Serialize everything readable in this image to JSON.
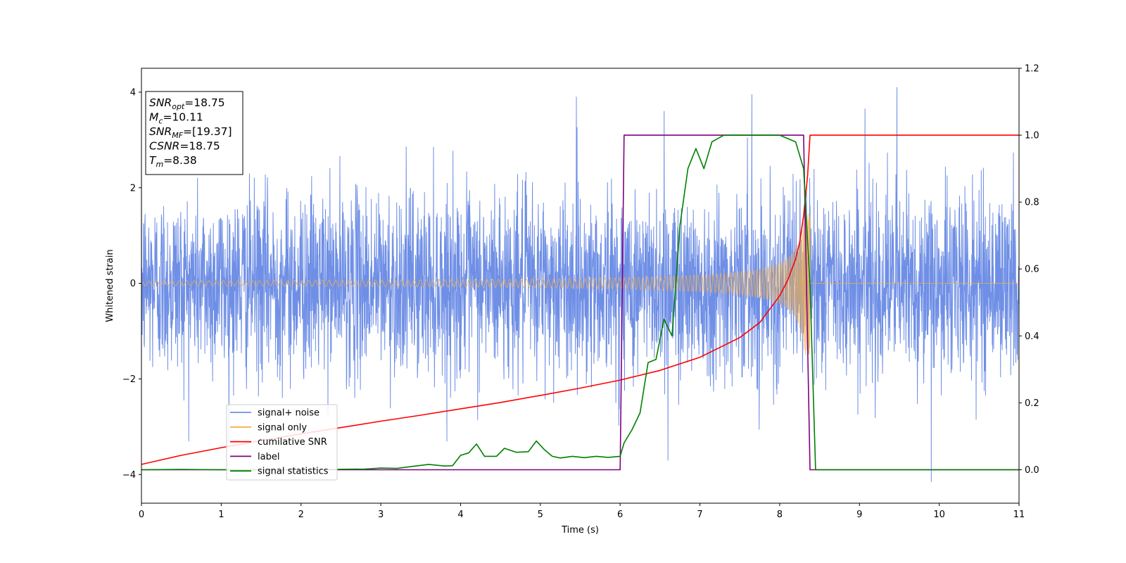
{
  "chart_data": {
    "type": "line",
    "title": "",
    "xlabel": "Time (s)",
    "ylabel": "Whitened strain",
    "xlim": [
      0,
      11
    ],
    "ylim_left": [
      -4.6,
      4.5
    ],
    "ylim_right": [
      -0.1,
      1.2
    ],
    "x_ticks": [
      "0",
      "1",
      "2",
      "3",
      "4",
      "5",
      "6",
      "7",
      "8",
      "9",
      "10",
      "11"
    ],
    "y_ticks_left": [
      "4",
      "2",
      "0",
      "−2",
      "−4"
    ],
    "y_ticks_right": [
      "1.2",
      "1.0",
      "0.8",
      "0.6",
      "0.4",
      "0.2",
      "0.0"
    ],
    "grid": false,
    "legend_position": "lower-left",
    "info_box": [
      {
        "main": "SNR",
        "sub": "opt",
        "rest": "=18.75"
      },
      {
        "main": "M",
        "sub": "c",
        "rest": "=10.11"
      },
      {
        "main": "SNR",
        "sub": "MF",
        "rest": "=[19.37]"
      },
      {
        "main": "CSNR",
        "sub": "",
        "rest": "=18.75"
      },
      {
        "main": "T",
        "sub": "m",
        "rest": "=8.38"
      }
    ],
    "series": [
      {
        "name": "signal+ noise",
        "axis": "left",
        "color": "#6f8fe6",
        "kind": "noise",
        "sigma": 0.95,
        "envelope_max": 3.3,
        "notable_peaks": [
          {
            "x": 5.45,
            "y": 3.9
          },
          {
            "x": 7.65,
            "y": 3.95
          },
          {
            "x": 9.47,
            "y": 4.1
          },
          {
            "x": 9.07,
            "y": 3.65
          },
          {
            "x": 6.55,
            "y": 3.6
          },
          {
            "x": 9.9,
            "y": -4.15
          },
          {
            "x": 6.6,
            "y": -3.7
          }
        ]
      },
      {
        "name": "signal only",
        "axis": "left",
        "color": "#f5b04a",
        "kind": "chirp",
        "amplitude_start": 0.05,
        "amplitude_end": 1.5,
        "merger_time": 8.38
      },
      {
        "name": "cumilative SNR",
        "axis": "right",
        "color": "#ff0000",
        "points": [
          [
            0,
            0.016
          ],
          [
            0.5,
            0.043
          ],
          [
            1,
            0.066
          ],
          [
            1.5,
            0.087
          ],
          [
            2,
            0.107
          ],
          [
            2.5,
            0.126
          ],
          [
            3,
            0.145
          ],
          [
            3.5,
            0.163
          ],
          [
            4,
            0.182
          ],
          [
            4.5,
            0.201
          ],
          [
            5,
            0.222
          ],
          [
            5.5,
            0.244
          ],
          [
            6,
            0.268
          ],
          [
            6.5,
            0.297
          ],
          [
            7,
            0.336
          ],
          [
            7.5,
            0.395
          ],
          [
            7.75,
            0.44
          ],
          [
            8,
            0.52
          ],
          [
            8.1,
            0.566
          ],
          [
            8.2,
            0.63
          ],
          [
            8.25,
            0.68
          ],
          [
            8.3,
            0.76
          ],
          [
            8.35,
            0.88
          ],
          [
            8.38,
            1.0
          ],
          [
            11,
            1.0
          ]
        ]
      },
      {
        "name": "label",
        "axis": "right",
        "color": "#800080",
        "points": [
          [
            0,
            0.0
          ],
          [
            6.0,
            0.0
          ],
          [
            6.05,
            1.0
          ],
          [
            8.3,
            1.0
          ],
          [
            8.38,
            0.0
          ],
          [
            11,
            0.0
          ]
        ]
      },
      {
        "name": "signal statistics",
        "axis": "right",
        "color": "#008000",
        "points": [
          [
            0,
            0.0
          ],
          [
            0.5,
            0.001
          ],
          [
            1.0,
            0.0
          ],
          [
            2.0,
            0.0
          ],
          [
            2.8,
            0.002
          ],
          [
            3.0,
            0.005
          ],
          [
            3.2,
            0.004
          ],
          [
            3.4,
            0.01
          ],
          [
            3.6,
            0.016
          ],
          [
            3.8,
            0.011
          ],
          [
            3.9,
            0.012
          ],
          [
            4.0,
            0.043
          ],
          [
            4.1,
            0.05
          ],
          [
            4.2,
            0.077
          ],
          [
            4.3,
            0.04
          ],
          [
            4.45,
            0.04
          ],
          [
            4.55,
            0.064
          ],
          [
            4.7,
            0.052
          ],
          [
            4.85,
            0.054
          ],
          [
            4.95,
            0.086
          ],
          [
            5.05,
            0.06
          ],
          [
            5.15,
            0.04
          ],
          [
            5.25,
            0.035
          ],
          [
            5.4,
            0.04
          ],
          [
            5.55,
            0.036
          ],
          [
            5.7,
            0.04
          ],
          [
            5.85,
            0.037
          ],
          [
            6.0,
            0.04
          ],
          [
            6.05,
            0.08
          ],
          [
            6.15,
            0.12
          ],
          [
            6.25,
            0.17
          ],
          [
            6.35,
            0.32
          ],
          [
            6.45,
            0.33
          ],
          [
            6.55,
            0.45
          ],
          [
            6.65,
            0.4
          ],
          [
            6.75,
            0.73
          ],
          [
            6.85,
            0.9
          ],
          [
            6.95,
            0.96
          ],
          [
            7.05,
            0.9
          ],
          [
            7.15,
            0.98
          ],
          [
            7.3,
            1.0
          ],
          [
            7.5,
            1.0
          ],
          [
            8.0,
            1.0
          ],
          [
            8.2,
            0.98
          ],
          [
            8.3,
            0.9
          ],
          [
            8.38,
            0.55
          ],
          [
            8.45,
            0.0
          ],
          [
            11,
            0.0
          ]
        ]
      }
    ]
  }
}
